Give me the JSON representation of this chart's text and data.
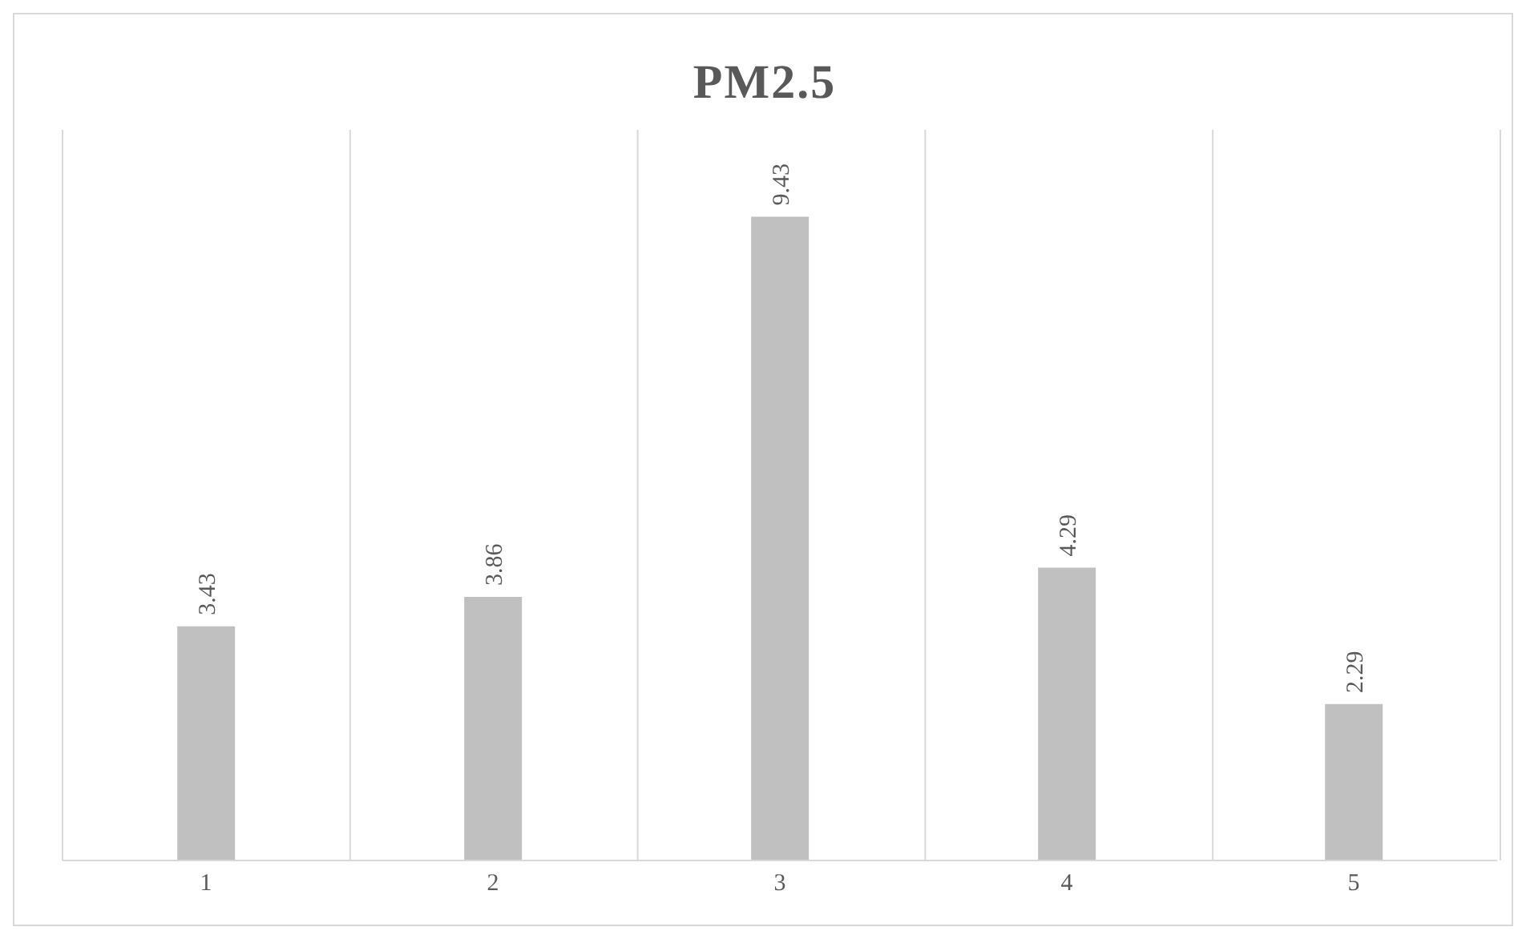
{
  "chart_data": {
    "type": "bar",
    "title": "PM2.5",
    "categories": [
      "1",
      "2",
      "3",
      "4",
      "5"
    ],
    "values": [
      3.43,
      3.86,
      9.43,
      4.29,
      2.29
    ],
    "color": "#c0c0c0",
    "data_labels": true,
    "grid": "x"
  }
}
